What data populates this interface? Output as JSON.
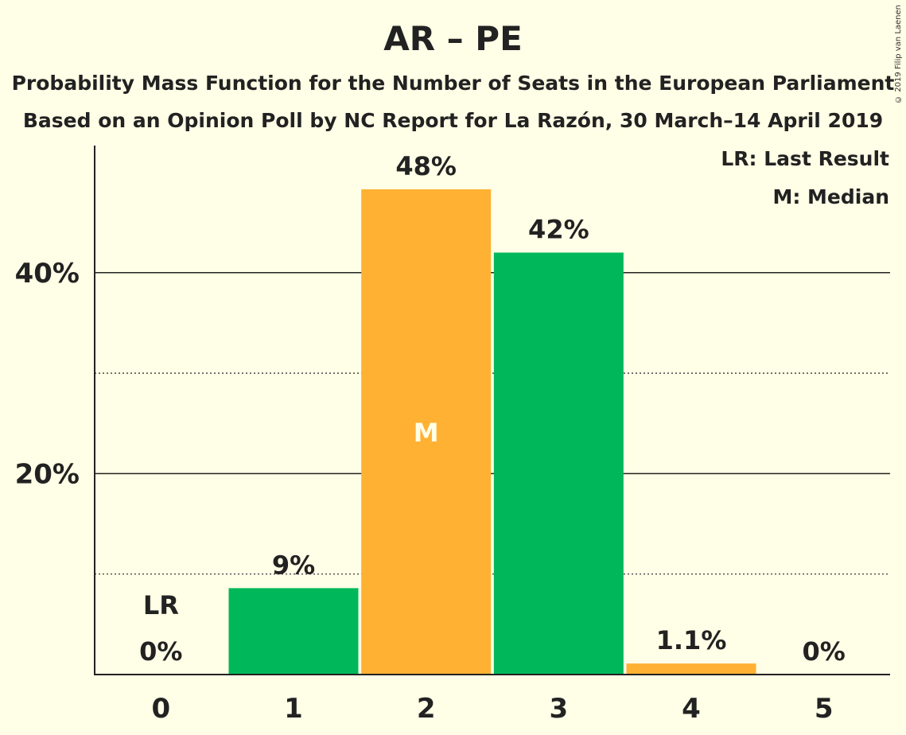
{
  "title": "AR – PE",
  "subtitle1": "Probability Mass Function for the Number of Seats in the European Parliament",
  "subtitle2": "Based on an Opinion Poll by NC Report for La Razón, 30 March–14 April 2019",
  "copyright": "© 2019 Filip van Laenen",
  "legend": {
    "lr": "LR: Last Result",
    "m": "M: Median"
  },
  "colors": {
    "background": "#FFFEE6",
    "green": "#00B85A",
    "orange": "#FFB133"
  },
  "chart_data": {
    "type": "bar",
    "categories": [
      "0",
      "1",
      "2",
      "3",
      "4",
      "5"
    ],
    "values": [
      0,
      8.6,
      48.3,
      42.0,
      1.1,
      0
    ],
    "labels": [
      "0%",
      "9%",
      "48%",
      "42%",
      "1.1%",
      "0%"
    ],
    "bar_colors": [
      "#00B85A",
      "#00B85A",
      "#FFB133",
      "#00B85A",
      "#FFB133",
      "#00B85A"
    ],
    "ylim": [
      0,
      50
    ],
    "yticks_major": [
      20,
      40
    ],
    "yticks_major_labels": [
      "20%",
      "40%"
    ],
    "yticks_minor": [
      10,
      30
    ],
    "grid": true,
    "last_result_index": 0,
    "last_result_label": "LR",
    "median_index": 2,
    "median_label": "M",
    "legend_position": "top-right"
  }
}
